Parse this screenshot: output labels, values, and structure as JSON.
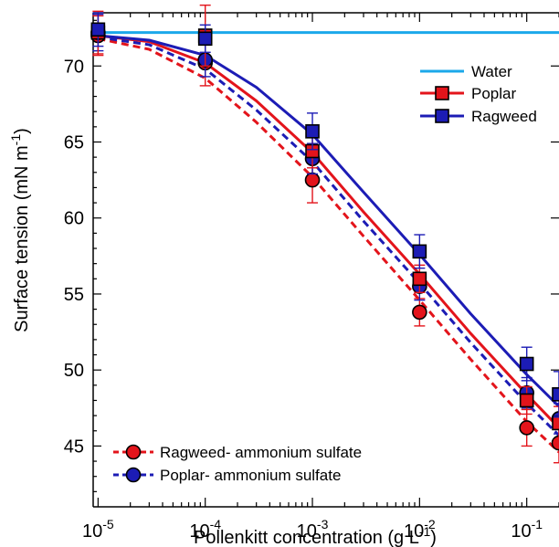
{
  "chart_data": {
    "type": "line",
    "xscale": "log",
    "xlim": [
      9e-06,
      0.2
    ],
    "ylim": [
      41,
      73.5
    ],
    "y_ticks": [
      45,
      50,
      55,
      60,
      65,
      70
    ],
    "x_tick_labels": [
      {
        "base": "10",
        "exp": "-5",
        "value": 1e-05
      },
      {
        "base": "10",
        "exp": "-4",
        "value": 0.0001
      },
      {
        "base": "10",
        "exp": "-3",
        "value": 0.001
      },
      {
        "base": "10",
        "exp": "-2",
        "value": 0.01
      },
      {
        "base": "10",
        "exp": "-1",
        "value": 0.1
      }
    ],
    "xlabel": {
      "main": "Pollenkitt concentration (g L",
      "sup": "-1",
      "end": ")"
    },
    "ylabel": {
      "main": "Surface tension (mN m",
      "sup": "-1",
      "end": ")"
    },
    "grid": false,
    "legends": [
      {
        "placement": "top-right",
        "entries": [
          "Water",
          "Poplar",
          "Ragweed"
        ]
      },
      {
        "placement": "bottom-left",
        "entries": [
          "Ragweed- ammonium sulfate",
          "Poplar- ammonium sulfate"
        ]
      }
    ],
    "fits": [
      {
        "name": "Water",
        "color": "#1BA8EA",
        "style": "solid",
        "x": [
          1e-05,
          0.2
        ],
        "y": [
          72.2,
          72.2
        ]
      },
      {
        "name": "Poplar",
        "color": "#E3141B",
        "style": "solid",
        "x": [
          1e-05,
          3e-05,
          0.0001,
          0.0003,
          0.001,
          0.003,
          0.01,
          0.03,
          0.1,
          0.2
        ],
        "y": [
          72.0,
          71.6,
          70.2,
          67.7,
          64.3,
          60.4,
          56.3,
          52.4,
          48.4,
          46.2
        ]
      },
      {
        "name": "Ragweed",
        "color": "#1C1CB5",
        "style": "solid",
        "x": [
          1e-05,
          3e-05,
          0.0001,
          0.0003,
          0.001,
          0.003,
          0.01,
          0.03,
          0.1,
          0.2
        ],
        "y": [
          72.0,
          71.7,
          70.7,
          68.6,
          65.5,
          61.7,
          57.6,
          53.7,
          49.7,
          47.6
        ]
      },
      {
        "name": "Ragweed- ammonium sulfate",
        "color": "#E3141B",
        "style": "dashed",
        "x": [
          1e-05,
          3e-05,
          0.0001,
          0.0003,
          0.001,
          0.003,
          0.01,
          0.03,
          0.1,
          0.2
        ],
        "y": [
          71.8,
          71.1,
          69.2,
          66.3,
          62.7,
          58.8,
          54.6,
          50.7,
          46.6,
          44.6
        ]
      },
      {
        "name": "Poplar- ammonium sulfate",
        "color": "#1C1CB5",
        "style": "dashed",
        "x": [
          1e-05,
          3e-05,
          0.0001,
          0.0003,
          0.001,
          0.003,
          0.01,
          0.03,
          0.1,
          0.2
        ],
        "y": [
          71.9,
          71.4,
          69.8,
          67.1,
          63.7,
          59.8,
          55.7,
          51.8,
          47.8,
          45.7
        ]
      }
    ],
    "series": [
      {
        "name": "Ragweed- ammonium sulfate",
        "marker": "circle",
        "fill": "#E3141B",
        "err_color": "#E3141B",
        "x": [
          1e-05,
          0.0001,
          0.001,
          0.01,
          0.1,
          0.2
        ],
        "y": [
          72.0,
          70.2,
          62.5,
          53.8,
          46.2,
          45.2
        ],
        "err": [
          1.3,
          1.5,
          1.5,
          0.9,
          1.2,
          1.3
        ]
      },
      {
        "name": "Poplar- ammonium sulfate",
        "marker": "circle",
        "fill": "#1C1CB5",
        "err_color": "#1C1CB5",
        "x": [
          1e-05,
          0.0001,
          0.001,
          0.01,
          0.1,
          0.2
        ],
        "y": [
          72.2,
          70.4,
          63.9,
          55.5,
          48.5,
          46.8
        ],
        "err": [
          1.2,
          1.1,
          1.0,
          0.9,
          1.0,
          1.0
        ]
      },
      {
        "name": "Poplar",
        "marker": "square",
        "fill": "#E3141B",
        "err_color": "#E3141B",
        "x": [
          1e-05,
          0.0001,
          0.001,
          0.01,
          0.1,
          0.2
        ],
        "y": [
          72.2,
          72.0,
          64.4,
          56.0,
          48.0,
          46.5
        ],
        "err": [
          1.4,
          2.0,
          1.1,
          0.9,
          0.9,
          1.1
        ]
      },
      {
        "name": "Ragweed",
        "marker": "square",
        "fill": "#1C1CB5",
        "err_color": "#1C1CB5",
        "x": [
          1e-05,
          0.0001,
          0.001,
          0.01,
          0.1,
          0.2
        ],
        "y": [
          72.4,
          71.8,
          65.7,
          57.8,
          50.4,
          48.4
        ],
        "err": [
          1.1,
          0.9,
          1.2,
          1.1,
          1.1,
          1.5
        ]
      }
    ]
  }
}
